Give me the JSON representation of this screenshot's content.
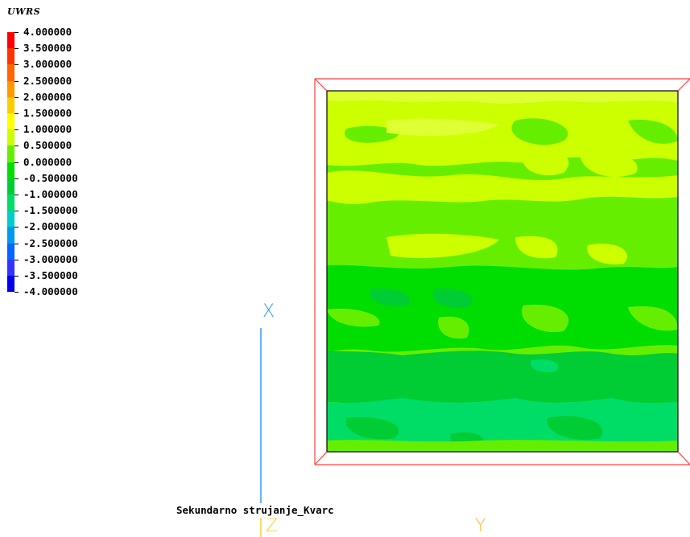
{
  "legend": {
    "title": "UWRS",
    "levels": [
      {
        "value": "4.000000",
        "color": "#ff0000"
      },
      {
        "value": "3.500000",
        "color": "#ff3300"
      },
      {
        "value": "3.000000",
        "color": "#ff6600"
      },
      {
        "value": "2.500000",
        "color": "#ff9900"
      },
      {
        "value": "2.000000",
        "color": "#ffcc00"
      },
      {
        "value": "1.500000",
        "color": "#ffff00"
      },
      {
        "value": "1.000000",
        "color": "#ccff00"
      },
      {
        "value": "0.500000",
        "color": "#66ee00"
      },
      {
        "value": "0.000000",
        "color": "#00dd00"
      },
      {
        "value": "-0.500000",
        "color": "#00cc33"
      },
      {
        "value": "-1.000000",
        "color": "#00dd66"
      },
      {
        "value": "-1.500000",
        "color": "#00cccc"
      },
      {
        "value": "-2.000000",
        "color": "#0099ee"
      },
      {
        "value": "-2.500000",
        "color": "#0066ff"
      },
      {
        "value": "-3.000000",
        "color": "#3333ff"
      },
      {
        "value": "-3.500000",
        "color": "#0000ee"
      },
      {
        "value": "-4.000000",
        "color": "#0000cc"
      }
    ]
  },
  "caption": "Sekundarno strujanje_Kvarc",
  "axes": {
    "x_label": "X",
    "y_label": "Y",
    "z_label": "Z"
  },
  "colors": {
    "frame": "#ff4040",
    "x_axis": "#3399ff",
    "y_axis": "#ffbb33",
    "z_axis": "#ffcc33"
  }
}
